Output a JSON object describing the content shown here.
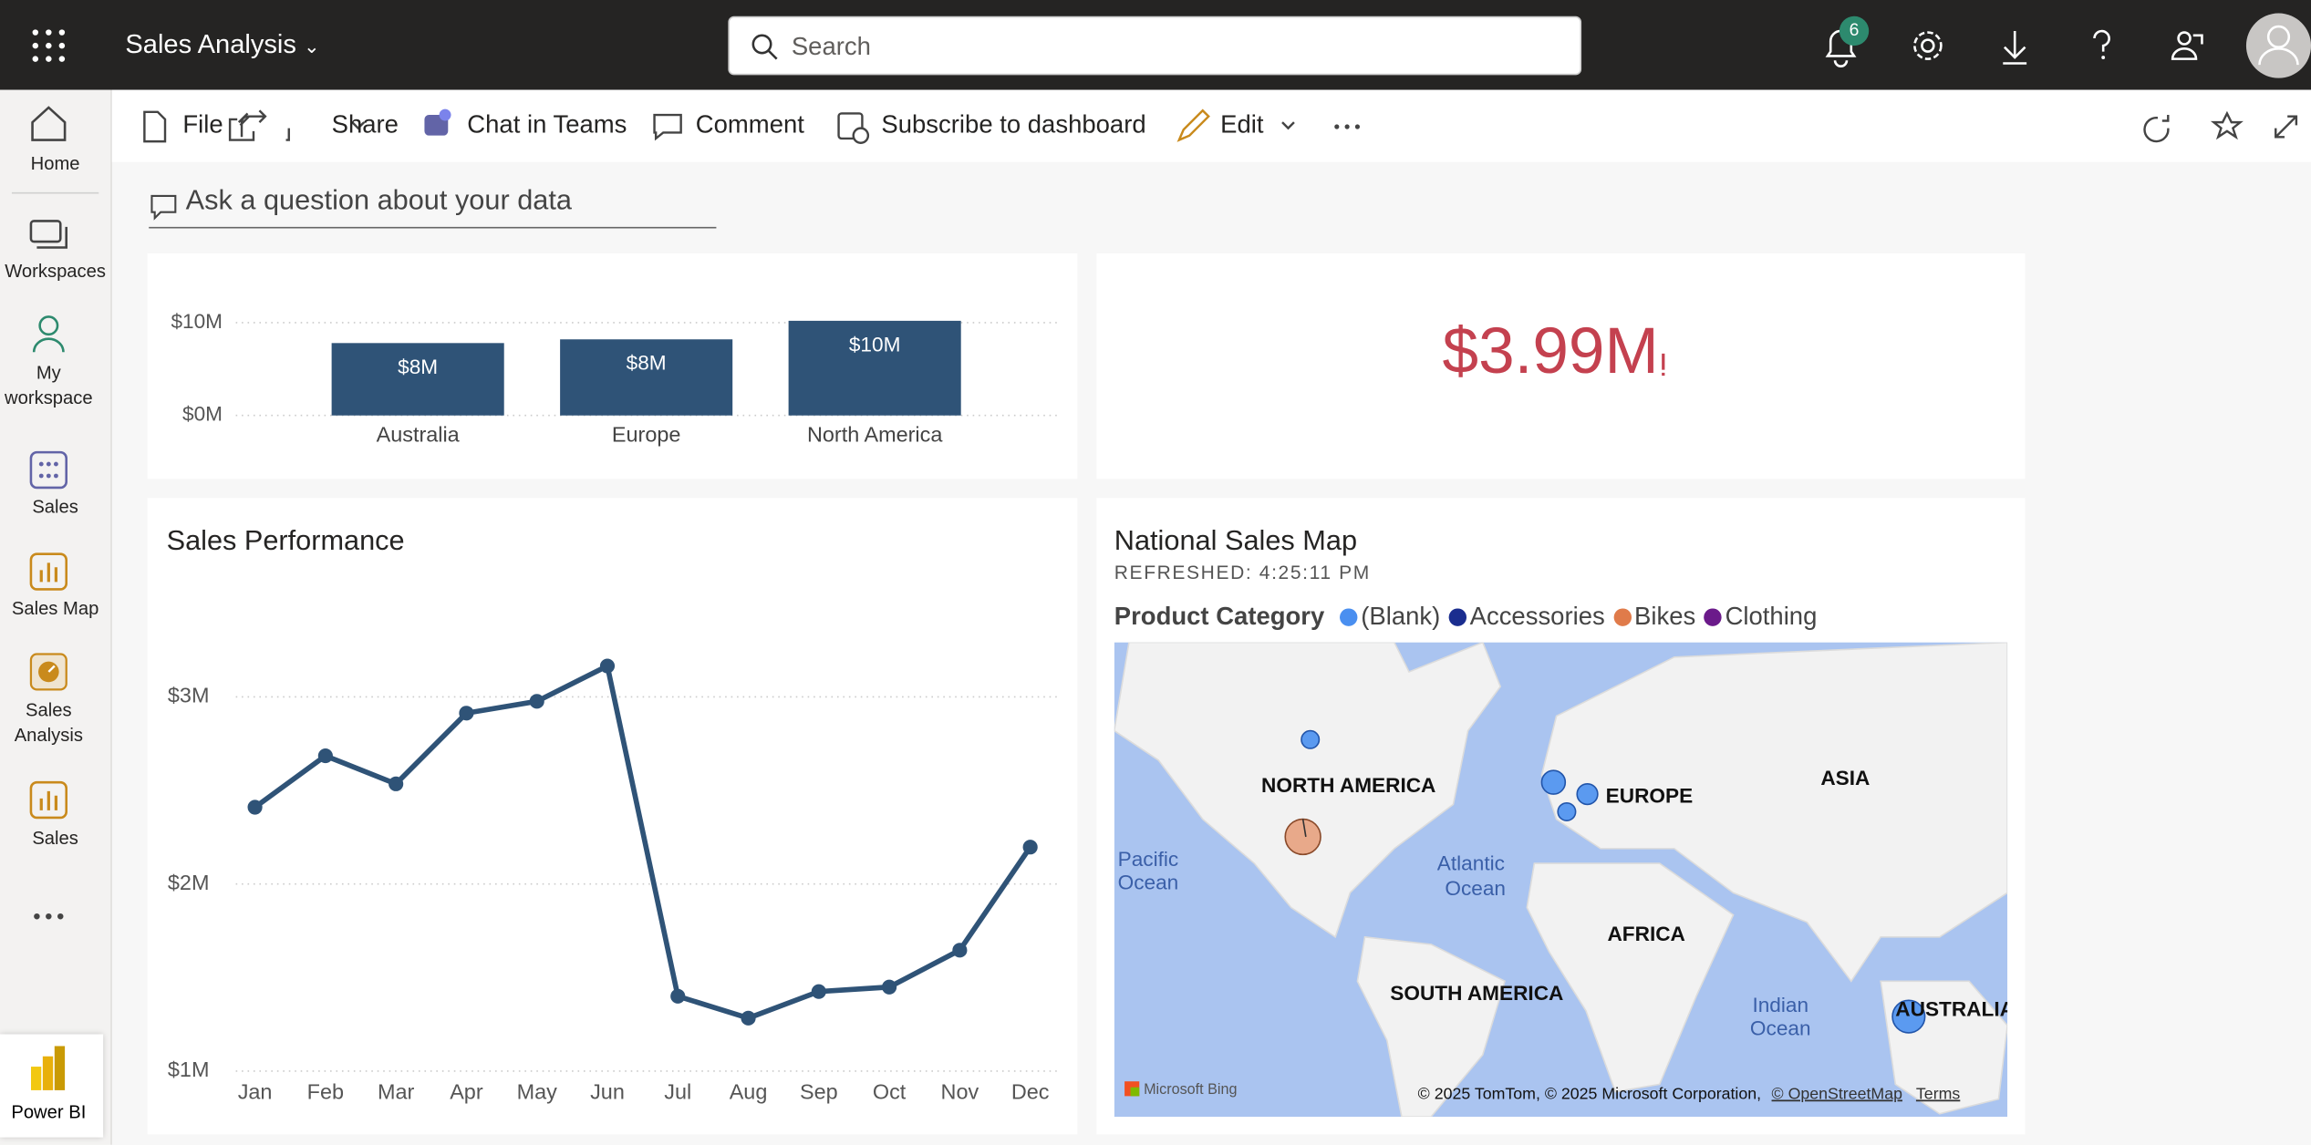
{
  "topbar": {
    "app_title": "Sales Analysis",
    "search_placeholder": "Search",
    "notification_count": 6
  },
  "nav": [
    {
      "label": "Home"
    },
    {
      "label": "Workspaces"
    },
    {
      "label": "My workspace"
    },
    {
      "label": "Sales"
    },
    {
      "label": "Sales Map"
    },
    {
      "label": "Sales Analysis"
    },
    {
      "label": "Sales"
    }
  ],
  "brand": "Power BI",
  "toolbar": [
    "File",
    "Share",
    "Chat in Teams",
    "Comment",
    "Subscribe to dashboard",
    "Edit"
  ],
  "qa_placeholder": "Ask a question about your data",
  "kpi_card": {
    "value_label": "$3.99M"
  },
  "chart_data": [
    {
      "type": "bar",
      "categories": [
        "Australia",
        "Europe",
        "North America"
      ],
      "values": [
        7800000,
        8200000,
        10200000
      ],
      "value_labels": [
        "$8M",
        "$8M",
        "$10M"
      ],
      "color": "#2f5377",
      "ylim": [
        0,
        11000000
      ],
      "yticks": [
        {
          "value": 0,
          "label": "$0M"
        },
        {
          "value": 10000000,
          "label": "$10M"
        }
      ],
      "grid": true
    },
    {
      "type": "line",
      "title": "Sales Performance",
      "categories": [
        "Jan",
        "Feb",
        "Mar",
        "Apr",
        "May",
        "Jun",
        "Jul",
        "Aug",
        "Sep",
        "Oct",
        "Nov",
        "Dec"
      ],
      "values": [
        2410000,
        2685000,
        2535000,
        2913000,
        2976000,
        3165000,
        1400000,
        1283000,
        1425000,
        1449000,
        1646000,
        2197000
      ],
      "color": "#2f5377",
      "ylim": [
        1000000,
        3600000
      ],
      "yticks": [
        {
          "value": 1000000,
          "label": "$1M"
        },
        {
          "value": 2000000,
          "label": "$2M"
        },
        {
          "value": 3000000,
          "label": "$3M"
        }
      ],
      "grid": true
    }
  ],
  "map": {
    "title": "National Sales Map",
    "subtitle": "REFRESHED: 4:25:11 PM",
    "legend_title": "Product Category",
    "legend": [
      {
        "name": "(Blank)",
        "color": "#4a8ff0"
      },
      {
        "name": "Accessories",
        "color": "#1a2d8f"
      },
      {
        "name": "Bikes",
        "color": "#e07b4a"
      },
      {
        "name": "Clothing",
        "color": "#6b1a8a"
      }
    ],
    "labels": [
      "NORTH AMERICA",
      "EUROPE",
      "ASIA",
      "AFRICA",
      "SOUTH AMERICA",
      "AUSTRALIA"
    ],
    "oceans": [
      [
        "Pacific",
        "Ocean"
      ],
      [
        "Atlantic",
        "Ocean"
      ],
      [
        "Indian",
        "Ocean"
      ]
    ],
    "provider": "Microsoft Bing",
    "copyright": "© 2025 TomTom, © 2025 Microsoft Corporation,",
    "osm": "© OpenStreetMap",
    "terms": "Terms"
  }
}
